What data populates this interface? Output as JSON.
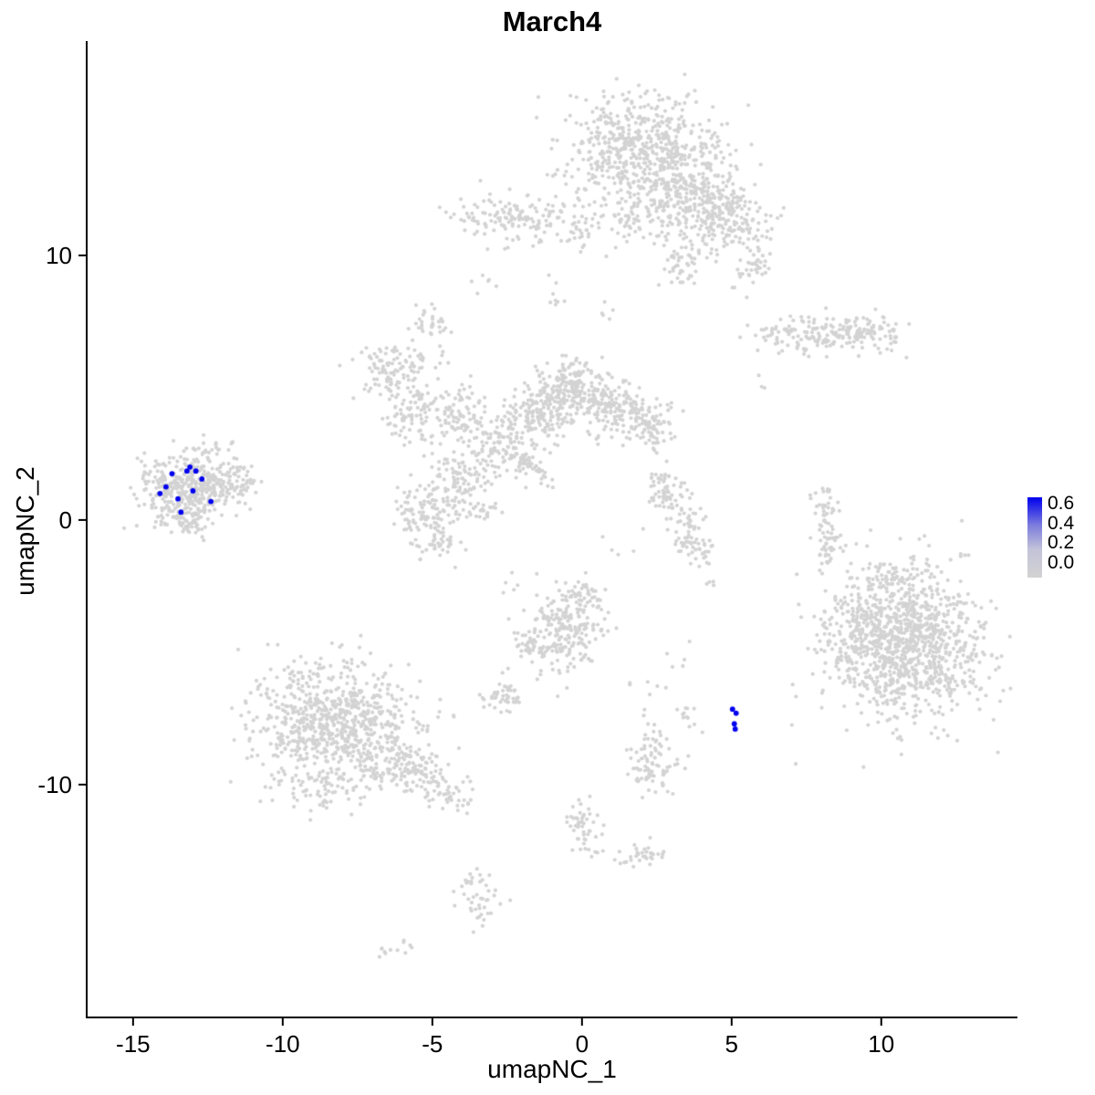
{
  "figure": {
    "title": "March4"
  },
  "chart_data": {
    "type": "scatter",
    "title": "March4",
    "xlabel": "umapNC_1",
    "ylabel": "umapNC_2",
    "xlim": [
      -16.55,
      14.55
    ],
    "ylim": [
      -18.8,
      18.1
    ],
    "x_ticks": [
      -15,
      -10,
      -5,
      0,
      5,
      10
    ],
    "y_ticks": [
      10,
      0,
      -10
    ],
    "grid": false,
    "legend_position": "right",
    "point_color_base": "#d3d3d3",
    "point_color_high": "#0000ee",
    "point_radius": 2.1,
    "highlight_radius": 2.9,
    "axis_color": "#000000",
    "seed": 42,
    "clusters": [
      {
        "cx": 1.9,
        "cy": 14.1,
        "sx": 1.35,
        "sy": 0.95,
        "n": 560
      },
      {
        "cx": 3.6,
        "cy": 12.2,
        "sx": 0.9,
        "sy": 0.8,
        "n": 260
      },
      {
        "cx": 4.9,
        "cy": 11.3,
        "sx": 0.7,
        "sy": 0.65,
        "n": 170
      },
      {
        "cx": 1.6,
        "cy": 11.4,
        "sx": 0.5,
        "sy": 0.6,
        "n": 60
      },
      {
        "cx": 3.3,
        "cy": 9.7,
        "sx": 0.4,
        "sy": 0.45,
        "n": 45
      },
      {
        "cx": 5.7,
        "cy": 9.4,
        "sx": 0.35,
        "sy": 0.4,
        "n": 35
      },
      {
        "cx": -2.2,
        "cy": 11.4,
        "sx": 1.05,
        "sy": 0.5,
        "n": 150
      },
      {
        "cx": 0.1,
        "cy": 10.9,
        "sx": 0.3,
        "sy": 0.3,
        "n": 25
      },
      {
        "cx": -3.0,
        "cy": 9.0,
        "sx": 0.25,
        "sy": 0.2,
        "n": 6
      },
      {
        "cx": -0.9,
        "cy": 8.3,
        "sx": 0.25,
        "sy": 0.4,
        "n": 8
      },
      {
        "cx": 0.9,
        "cy": 8.0,
        "sx": 0.25,
        "sy": 0.25,
        "n": 5
      },
      {
        "cx": 7.4,
        "cy": 7.0,
        "sx": 0.85,
        "sy": 0.35,
        "n": 120
      },
      {
        "cx": 9.4,
        "cy": 7.2,
        "sx": 0.6,
        "sy": 0.3,
        "n": 80
      },
      {
        "cx": 10.2,
        "cy": 6.7,
        "sx": 0.3,
        "sy": 0.2,
        "n": 12
      },
      {
        "cx": 6.0,
        "cy": 5.2,
        "sx": 0.2,
        "sy": 0.2,
        "n": 3
      },
      {
        "cx": -6.3,
        "cy": 5.7,
        "sx": 0.7,
        "sy": 0.55,
        "n": 120
      },
      {
        "cx": -5.0,
        "cy": 7.5,
        "sx": 0.3,
        "sy": 0.3,
        "n": 30
      },
      {
        "cx": -5.6,
        "cy": 4.0,
        "sx": 0.5,
        "sy": 0.5,
        "n": 80
      },
      {
        "cx": -4.1,
        "cy": 4.0,
        "sx": 0.5,
        "sy": 0.5,
        "n": 90
      },
      {
        "cx": -2.8,
        "cy": 2.6,
        "sx": 0.55,
        "sy": 0.6,
        "n": 110
      },
      {
        "cx": -4.2,
        "cy": 1.4,
        "sx": 0.5,
        "sy": 0.6,
        "n": 100
      },
      {
        "cx": -5.4,
        "cy": 0.2,
        "sx": 0.5,
        "sy": 0.55,
        "n": 90
      },
      {
        "cx": -4.8,
        "cy": -0.9,
        "sx": 0.4,
        "sy": 0.4,
        "n": 40
      },
      {
        "cx": -1.5,
        "cy": 4.1,
        "sx": 0.6,
        "sy": 0.6,
        "n": 170
      },
      {
        "cx": -0.4,
        "cy": 5.0,
        "sx": 0.5,
        "sy": 0.5,
        "n": 170
      },
      {
        "cx": 1.0,
        "cy": 4.2,
        "sx": 0.55,
        "sy": 0.5,
        "n": 150
      },
      {
        "cx": 2.3,
        "cy": 3.7,
        "sx": 0.45,
        "sy": 0.45,
        "n": 90
      },
      {
        "cx": -1.9,
        "cy": 2.2,
        "sx": 0.6,
        "sy": 0.13,
        "rot": -40,
        "n": 45
      },
      {
        "cx": -3.3,
        "cy": 0.4,
        "sx": 0.3,
        "sy": 0.3,
        "n": 25
      },
      {
        "cx": 2.7,
        "cy": 1.0,
        "sx": 0.35,
        "sy": 0.5,
        "n": 60
      },
      {
        "cx": 3.4,
        "cy": -0.3,
        "sx": 0.3,
        "sy": 0.5,
        "n": 55
      },
      {
        "cx": 4.0,
        "cy": -1.1,
        "sx": 0.3,
        "sy": 0.3,
        "n": 25
      },
      {
        "cx": 2.6,
        "cy": 2.8,
        "sx": 0.12,
        "sy": 0.12,
        "n": 3
      },
      {
        "cx": 4.2,
        "cy": -2.4,
        "sx": 0.15,
        "sy": 0.15,
        "n": 4
      },
      {
        "cx": 8.1,
        "cy": 0.6,
        "sx": 0.25,
        "sy": 0.4,
        "n": 30
      },
      {
        "cx": 8.2,
        "cy": -0.8,
        "sx": 0.22,
        "sy": 0.55,
        "n": 45
      },
      {
        "cx": 10.9,
        "cy": -4.7,
        "sx": 1.25,
        "sy": 1.4,
        "n": 1050
      },
      {
        "cx": 8.9,
        "cy": -4.0,
        "sx": 0.6,
        "sy": 0.8,
        "n": 90
      },
      {
        "cx": 10.2,
        "cy": -2.3,
        "sx": 0.6,
        "sy": 0.35,
        "n": 60
      },
      {
        "cx": -8.2,
        "cy": -7.7,
        "sx": 1.4,
        "sy": 1.2,
        "n": 800
      },
      {
        "cx": -5.6,
        "cy": -9.6,
        "sx": 0.8,
        "sy": 0.5,
        "rot": -25,
        "n": 150
      },
      {
        "cx": -8.8,
        "cy": -10.3,
        "sx": 0.9,
        "sy": 0.4,
        "n": 50
      },
      {
        "cx": -4.2,
        "cy": -10.6,
        "sx": 0.4,
        "sy": 0.3,
        "n": 18
      },
      {
        "cx": -0.5,
        "cy": -4.1,
        "sx": 0.6,
        "sy": 0.75,
        "n": 210
      },
      {
        "cx": 0.1,
        "cy": -2.8,
        "sx": 0.35,
        "sy": 0.3,
        "n": 40
      },
      {
        "cx": -1.7,
        "cy": -4.8,
        "sx": 0.35,
        "sy": 0.35,
        "n": 40
      },
      {
        "cx": -2.7,
        "cy": -6.7,
        "sx": 0.35,
        "sy": 0.3,
        "n": 45
      },
      {
        "cx": 2.3,
        "cy": -9.2,
        "sx": 0.4,
        "sy": 0.6,
        "n": 90
      },
      {
        "cx": 0.0,
        "cy": -11.6,
        "sx": 0.3,
        "sy": 0.5,
        "n": 50
      },
      {
        "cx": 1.9,
        "cy": -12.7,
        "sx": 0.35,
        "sy": 0.3,
        "n": 35
      },
      {
        "cx": -3.4,
        "cy": -14.3,
        "sx": 0.3,
        "sy": 0.6,
        "n": 45
      },
      {
        "cx": -6.2,
        "cy": -16.3,
        "sx": 0.3,
        "sy": 0.15,
        "n": 12
      },
      {
        "cx": 3.6,
        "cy": -7.5,
        "sx": 0.3,
        "sy": 0.35,
        "n": 12
      },
      {
        "cx": 1.9,
        "cy": -6.4,
        "sx": 0.4,
        "sy": 0.4,
        "n": 8
      },
      {
        "cx": -2.4,
        "cy": -2.4,
        "sx": 0.3,
        "sy": 0.3,
        "n": 5
      },
      {
        "cx": 1.3,
        "cy": -1.0,
        "sx": 0.3,
        "sy": 0.3,
        "n": 4
      },
      {
        "cx": 3.3,
        "cy": -5.2,
        "sx": 0.3,
        "sy": 0.3,
        "n": 5
      },
      {
        "cx": -13.2,
        "cy": 1.2,
        "sx": 0.78,
        "sy": 0.58,
        "n": 400
      },
      {
        "cx": -11.6,
        "cy": 1.5,
        "sx": 0.5,
        "sy": 0.35,
        "n": 60
      },
      {
        "cx": -12.6,
        "cy": 2.6,
        "sx": 0.4,
        "sy": 0.25,
        "n": 20
      },
      {
        "cx": -13.3,
        "cy": -0.1,
        "sx": 0.5,
        "sy": 0.25,
        "n": 50
      },
      {
        "cx": -11.7,
        "cy": 2.9,
        "sx": 0.1,
        "sy": 0.1,
        "n": 2
      }
    ],
    "highlighted_points": [
      [
        -14.1,
        1.0
      ],
      [
        -13.9,
        1.25
      ],
      [
        -13.7,
        1.75
      ],
      [
        -13.5,
        0.8
      ],
      [
        -13.4,
        0.3
      ],
      [
        -13.2,
        1.85
      ],
      [
        -13.1,
        2.0
      ],
      [
        -13.0,
        1.1
      ],
      [
        -12.9,
        1.85
      ],
      [
        -12.7,
        1.55
      ],
      [
        -12.4,
        0.7
      ],
      [
        5.03,
        -7.15
      ],
      [
        5.15,
        -7.3
      ],
      [
        5.09,
        -7.7
      ],
      [
        5.12,
        -7.9
      ]
    ],
    "legend": {
      "labels": [
        "0.6",
        "0.4",
        "0.2",
        "0.0"
      ],
      "stops": [
        {
          "color": "#0000ee",
          "pos": 0
        },
        {
          "color": "#7d7ddd",
          "pos": 35
        },
        {
          "color": "#c3c3d9",
          "pos": 65
        },
        {
          "color": "#d3d3d3",
          "pos": 100
        }
      ]
    }
  }
}
